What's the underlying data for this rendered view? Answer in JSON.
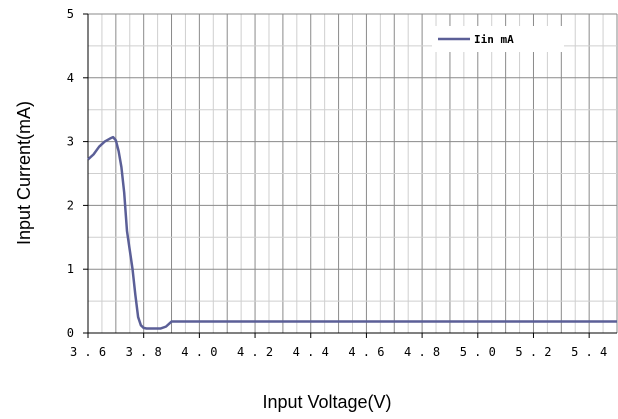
{
  "chart_data": {
    "type": "line",
    "title": "",
    "xlabel": "Input Voltage(V)",
    "ylabel": "Input Current(mA)",
    "xlim": [
      3.6,
      5.5
    ],
    "ylim": [
      0,
      5
    ],
    "x_ticks": [
      "3.6",
      "3.8",
      "4.0",
      "4.2",
      "4.4",
      "4.6",
      "4.8",
      "5.0",
      "5.2",
      "5.4"
    ],
    "y_ticks": [
      "0",
      "1",
      "2",
      "3",
      "4",
      "5"
    ],
    "grid": true,
    "legend": {
      "position": "top-right"
    },
    "series": [
      {
        "name": "Iin mA",
        "color": "#5b5f97",
        "x": [
          3.6,
          3.62,
          3.64,
          3.66,
          3.68,
          3.69,
          3.7,
          3.71,
          3.72,
          3.73,
          3.74,
          3.75,
          3.76,
          3.77,
          3.78,
          3.79,
          3.8,
          3.81,
          3.82,
          3.84,
          3.86,
          3.88,
          3.9,
          4.0,
          4.5,
          5.0,
          5.5
        ],
        "y": [
          2.72,
          2.8,
          2.92,
          3.0,
          3.05,
          3.07,
          3.02,
          2.85,
          2.6,
          2.2,
          1.6,
          1.3,
          1.0,
          0.6,
          0.25,
          0.12,
          0.08,
          0.07,
          0.07,
          0.07,
          0.07,
          0.1,
          0.18,
          0.18,
          0.18,
          0.18,
          0.18
        ]
      }
    ]
  }
}
